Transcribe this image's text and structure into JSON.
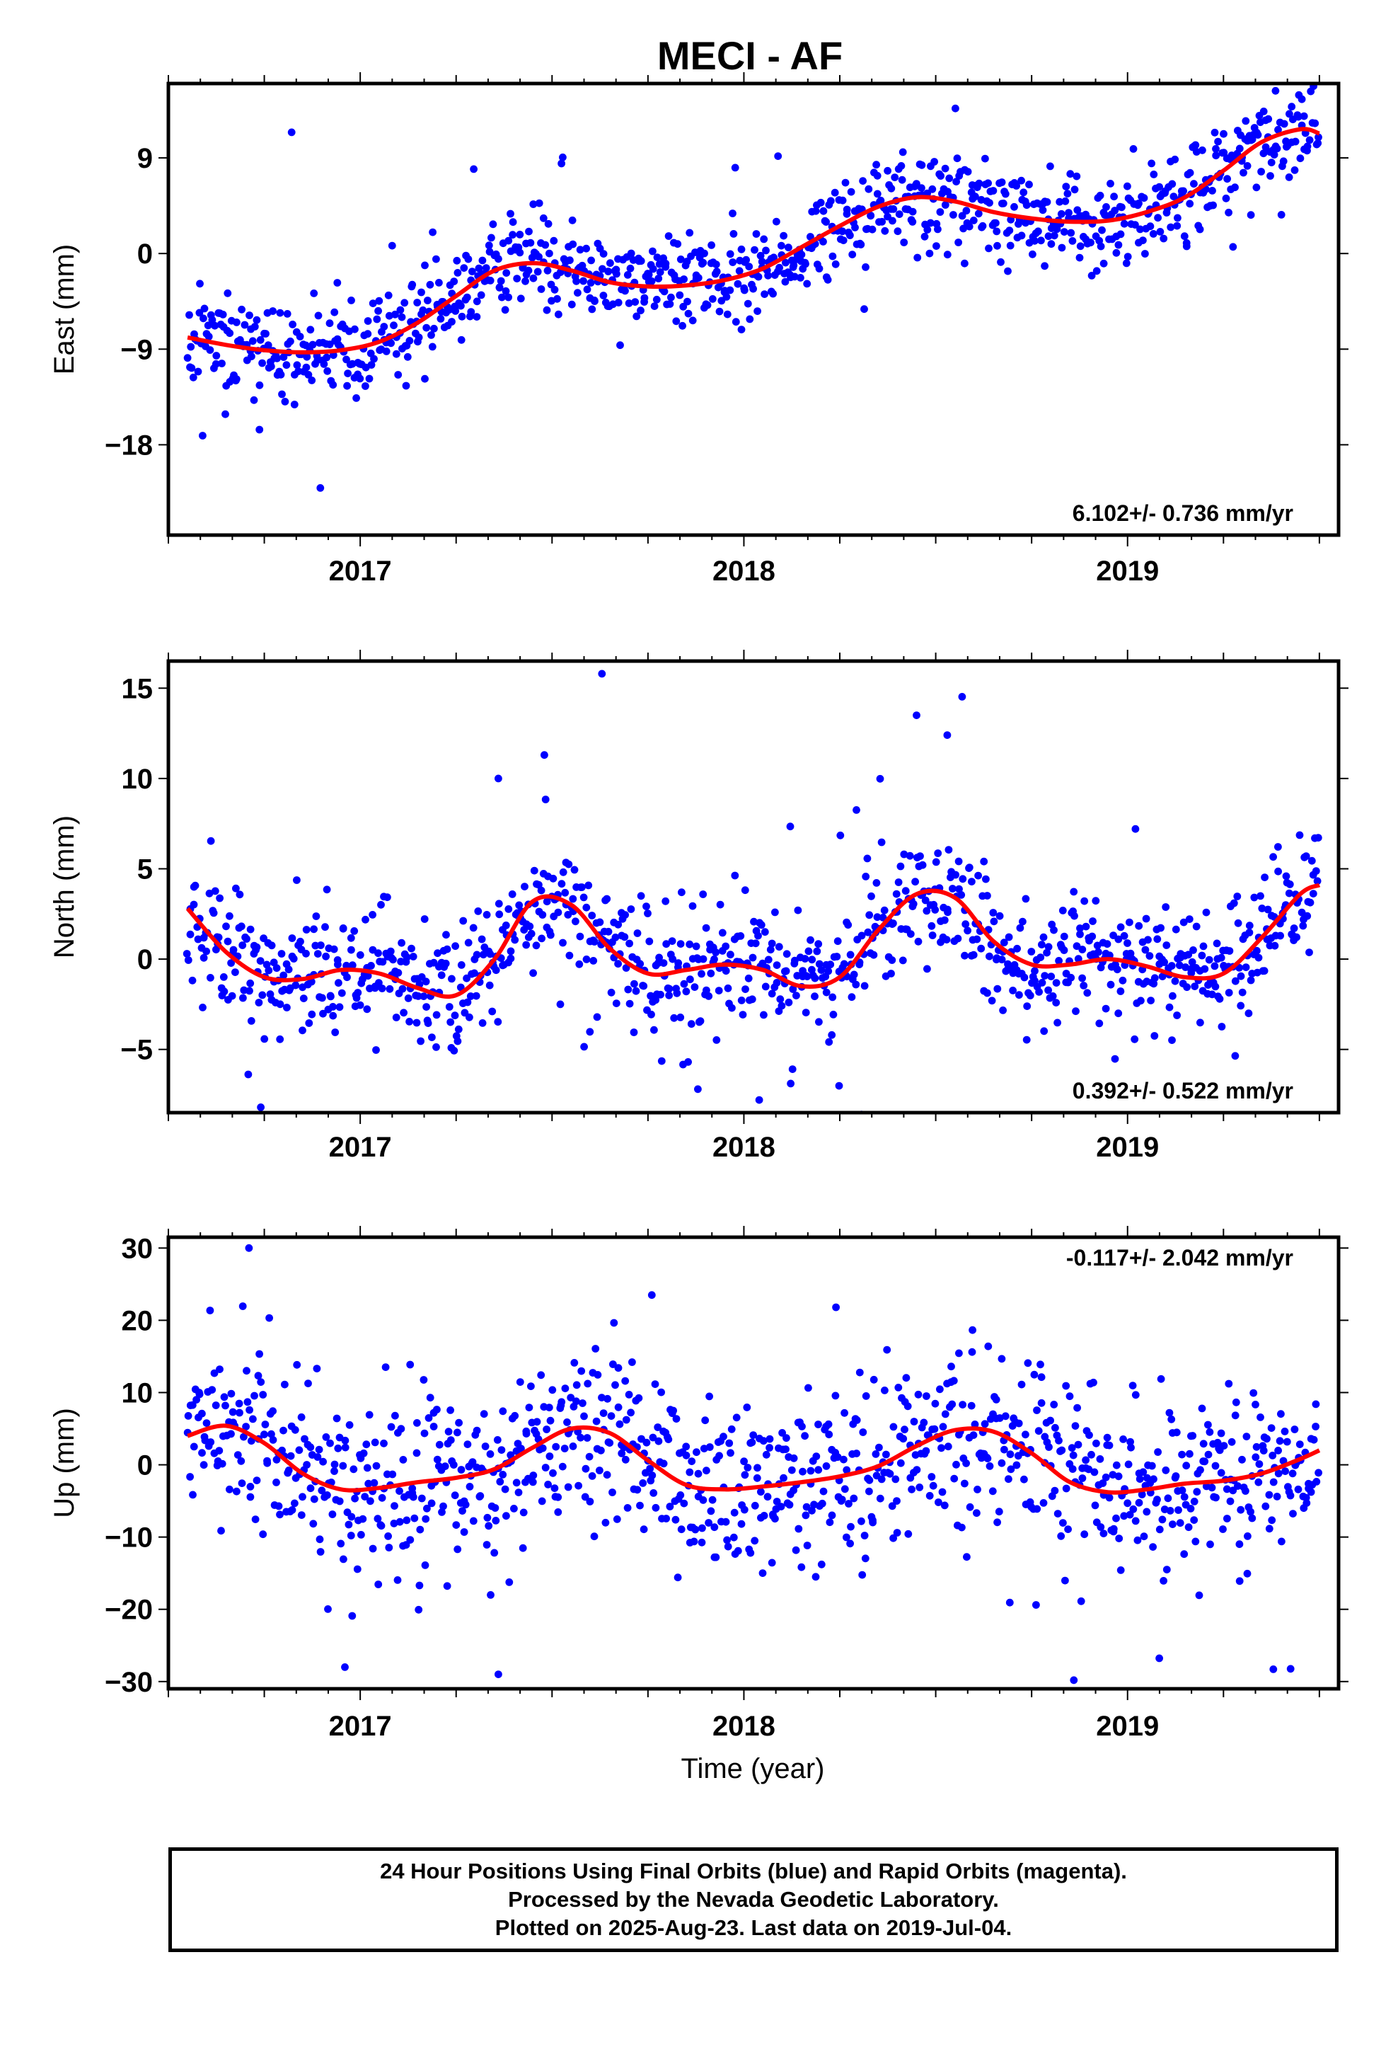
{
  "title": "MECI - AF",
  "xlabel": "Time (year)",
  "caption": {
    "lines": [
      "24 Hour Positions Using Final Orbits (blue) and Rapid Orbits (magenta).",
      "Processed by the Nevada Geodetic Laboratory.",
      "Plotted on 2025-Aug-23. Last data on 2019-Jul-04."
    ]
  },
  "colors": {
    "points": "#0000ff",
    "fit": "#ff0000",
    "frame": "#000000"
  },
  "chart_data": [
    {
      "type": "scatter",
      "component": "east",
      "ylabel": "East (mm)",
      "xlim": [
        2016.5,
        2019.55
      ],
      "ylim": [
        -26.5,
        16
      ],
      "yticks": [
        9,
        0,
        -9,
        -18
      ],
      "ytick_labels": [
        "9",
        "0",
        "−9",
        "−18"
      ],
      "xticks": [
        2017,
        2018,
        2019
      ],
      "xtick_labels": [
        "2017",
        "2018",
        "2019"
      ],
      "rate": "6.102+/- 0.736 mm/yr",
      "fit": {
        "x": [
          2016.55,
          2016.65,
          2016.75,
          2016.85,
          2016.95,
          2017.05,
          2017.15,
          2017.25,
          2017.35,
          2017.45,
          2017.55,
          2017.65,
          2017.75,
          2017.85,
          2017.95,
          2018.05,
          2018.15,
          2018.25,
          2018.35,
          2018.45,
          2018.55,
          2018.65,
          2018.75,
          2018.85,
          2018.95,
          2019.05,
          2019.15,
          2019.25,
          2019.35,
          2019.45,
          2019.5
        ],
        "y": [
          -7.9,
          -8.6,
          -9.1,
          -9.3,
          -9.1,
          -8.3,
          -6.5,
          -4.0,
          -1.6,
          -0.9,
          -1.6,
          -2.7,
          -3.1,
          -3.0,
          -2.5,
          -1.4,
          0.6,
          2.6,
          4.4,
          5.3,
          4.9,
          3.9,
          3.3,
          3.0,
          3.1,
          3.9,
          5.3,
          7.8,
          10.5,
          11.7,
          11.3
        ]
      },
      "generator": {
        "seed": 11,
        "count": 1000,
        "sigma": 2.2,
        "outlier_rate": 0.05,
        "outlier_scale": 3.0
      }
    },
    {
      "type": "scatter",
      "component": "north",
      "ylabel": "North (mm)",
      "xlim": [
        2016.5,
        2019.55
      ],
      "ylim": [
        -8.5,
        16.5
      ],
      "yticks": [
        15,
        10,
        5,
        0,
        -5
      ],
      "ytick_labels": [
        "15",
        "10",
        "5",
        "0",
        "−5"
      ],
      "xticks": [
        2017,
        2018,
        2019
      ],
      "xtick_labels": [
        "2017",
        "2018",
        "2019"
      ],
      "rate": "0.392+/- 0.522 mm/yr",
      "fit": {
        "x": [
          2016.55,
          2016.65,
          2016.75,
          2016.85,
          2016.95,
          2017.05,
          2017.15,
          2017.25,
          2017.35,
          2017.45,
          2017.55,
          2017.65,
          2017.75,
          2017.85,
          2017.95,
          2018.05,
          2018.15,
          2018.25,
          2018.35,
          2018.45,
          2018.55,
          2018.65,
          2018.75,
          2018.85,
          2018.95,
          2019.05,
          2019.15,
          2019.25,
          2019.35,
          2019.45,
          2019.5
        ],
        "y": [
          2.8,
          0.4,
          -1.0,
          -1.1,
          -0.6,
          -0.8,
          -1.6,
          -2.0,
          0.0,
          3.2,
          3.0,
          0.6,
          -0.8,
          -0.6,
          -0.3,
          -0.6,
          -1.5,
          -1.0,
          1.6,
          3.6,
          3.4,
          1.0,
          -0.3,
          -0.3,
          0.0,
          -0.4,
          -1.0,
          -0.8,
          1.2,
          3.6,
          4.1
        ]
      },
      "outliers": [
        [
          2017.63,
          15.8
        ],
        [
          2018.45,
          13.5
        ],
        [
          2018.53,
          12.4
        ],
        [
          2017.48,
          11.3
        ],
        [
          2017.36,
          10.0
        ],
        [
          2018.04,
          -7.8
        ],
        [
          2017.88,
          -7.2
        ]
      ],
      "generator": {
        "seed": 23,
        "count": 1000,
        "sigma": 1.6,
        "outlier_rate": 0.04,
        "outlier_scale": 3.0
      }
    },
    {
      "type": "scatter",
      "component": "up",
      "ylabel": "Up (mm)",
      "xlim": [
        2016.5,
        2019.55
      ],
      "ylim": [
        -31,
        31.5
      ],
      "yticks": [
        30,
        20,
        10,
        0,
        -10,
        -20,
        -30
      ],
      "ytick_labels": [
        "30",
        "20",
        "10",
        "0",
        "−10",
        "−20",
        "−30"
      ],
      "xticks": [
        2017,
        2018,
        2019
      ],
      "xtick_labels": [
        "2017",
        "2018",
        "2019"
      ],
      "rate": "-0.117+/- 2.042 mm/yr",
      "fit": {
        "x": [
          2016.55,
          2016.65,
          2016.75,
          2016.85,
          2016.95,
          2017.05,
          2017.15,
          2017.25,
          2017.35,
          2017.45,
          2017.55,
          2017.65,
          2017.75,
          2017.85,
          2017.95,
          2018.05,
          2018.15,
          2018.25,
          2018.35,
          2018.45,
          2018.55,
          2018.65,
          2018.75,
          2018.85,
          2018.95,
          2019.05,
          2019.15,
          2019.25,
          2019.35,
          2019.45,
          2019.5
        ],
        "y": [
          4.0,
          5.4,
          3.0,
          -1.2,
          -3.4,
          -3.2,
          -2.4,
          -1.8,
          -0.6,
          2.4,
          5.0,
          4.4,
          0.6,
          -2.8,
          -3.4,
          -3.0,
          -2.4,
          -1.6,
          -0.2,
          2.6,
          4.8,
          4.6,
          1.6,
          -2.4,
          -3.8,
          -3.4,
          -2.6,
          -2.2,
          -1.2,
          0.8,
          2.0
        ]
      },
      "outliers": [
        [
          2016.71,
          30.0
        ],
        [
          2017.76,
          23.5
        ],
        [
          2018.24,
          21.8
        ],
        [
          2016.96,
          -28.0
        ],
        [
          2017.36,
          -29.0
        ],
        [
          2018.86,
          -29.8
        ],
        [
          2019.38,
          -28.3
        ]
      ],
      "generator": {
        "seed": 37,
        "count": 1000,
        "sigma": 6.0,
        "outlier_rate": 0.03,
        "outlier_scale": 2.2
      }
    }
  ]
}
